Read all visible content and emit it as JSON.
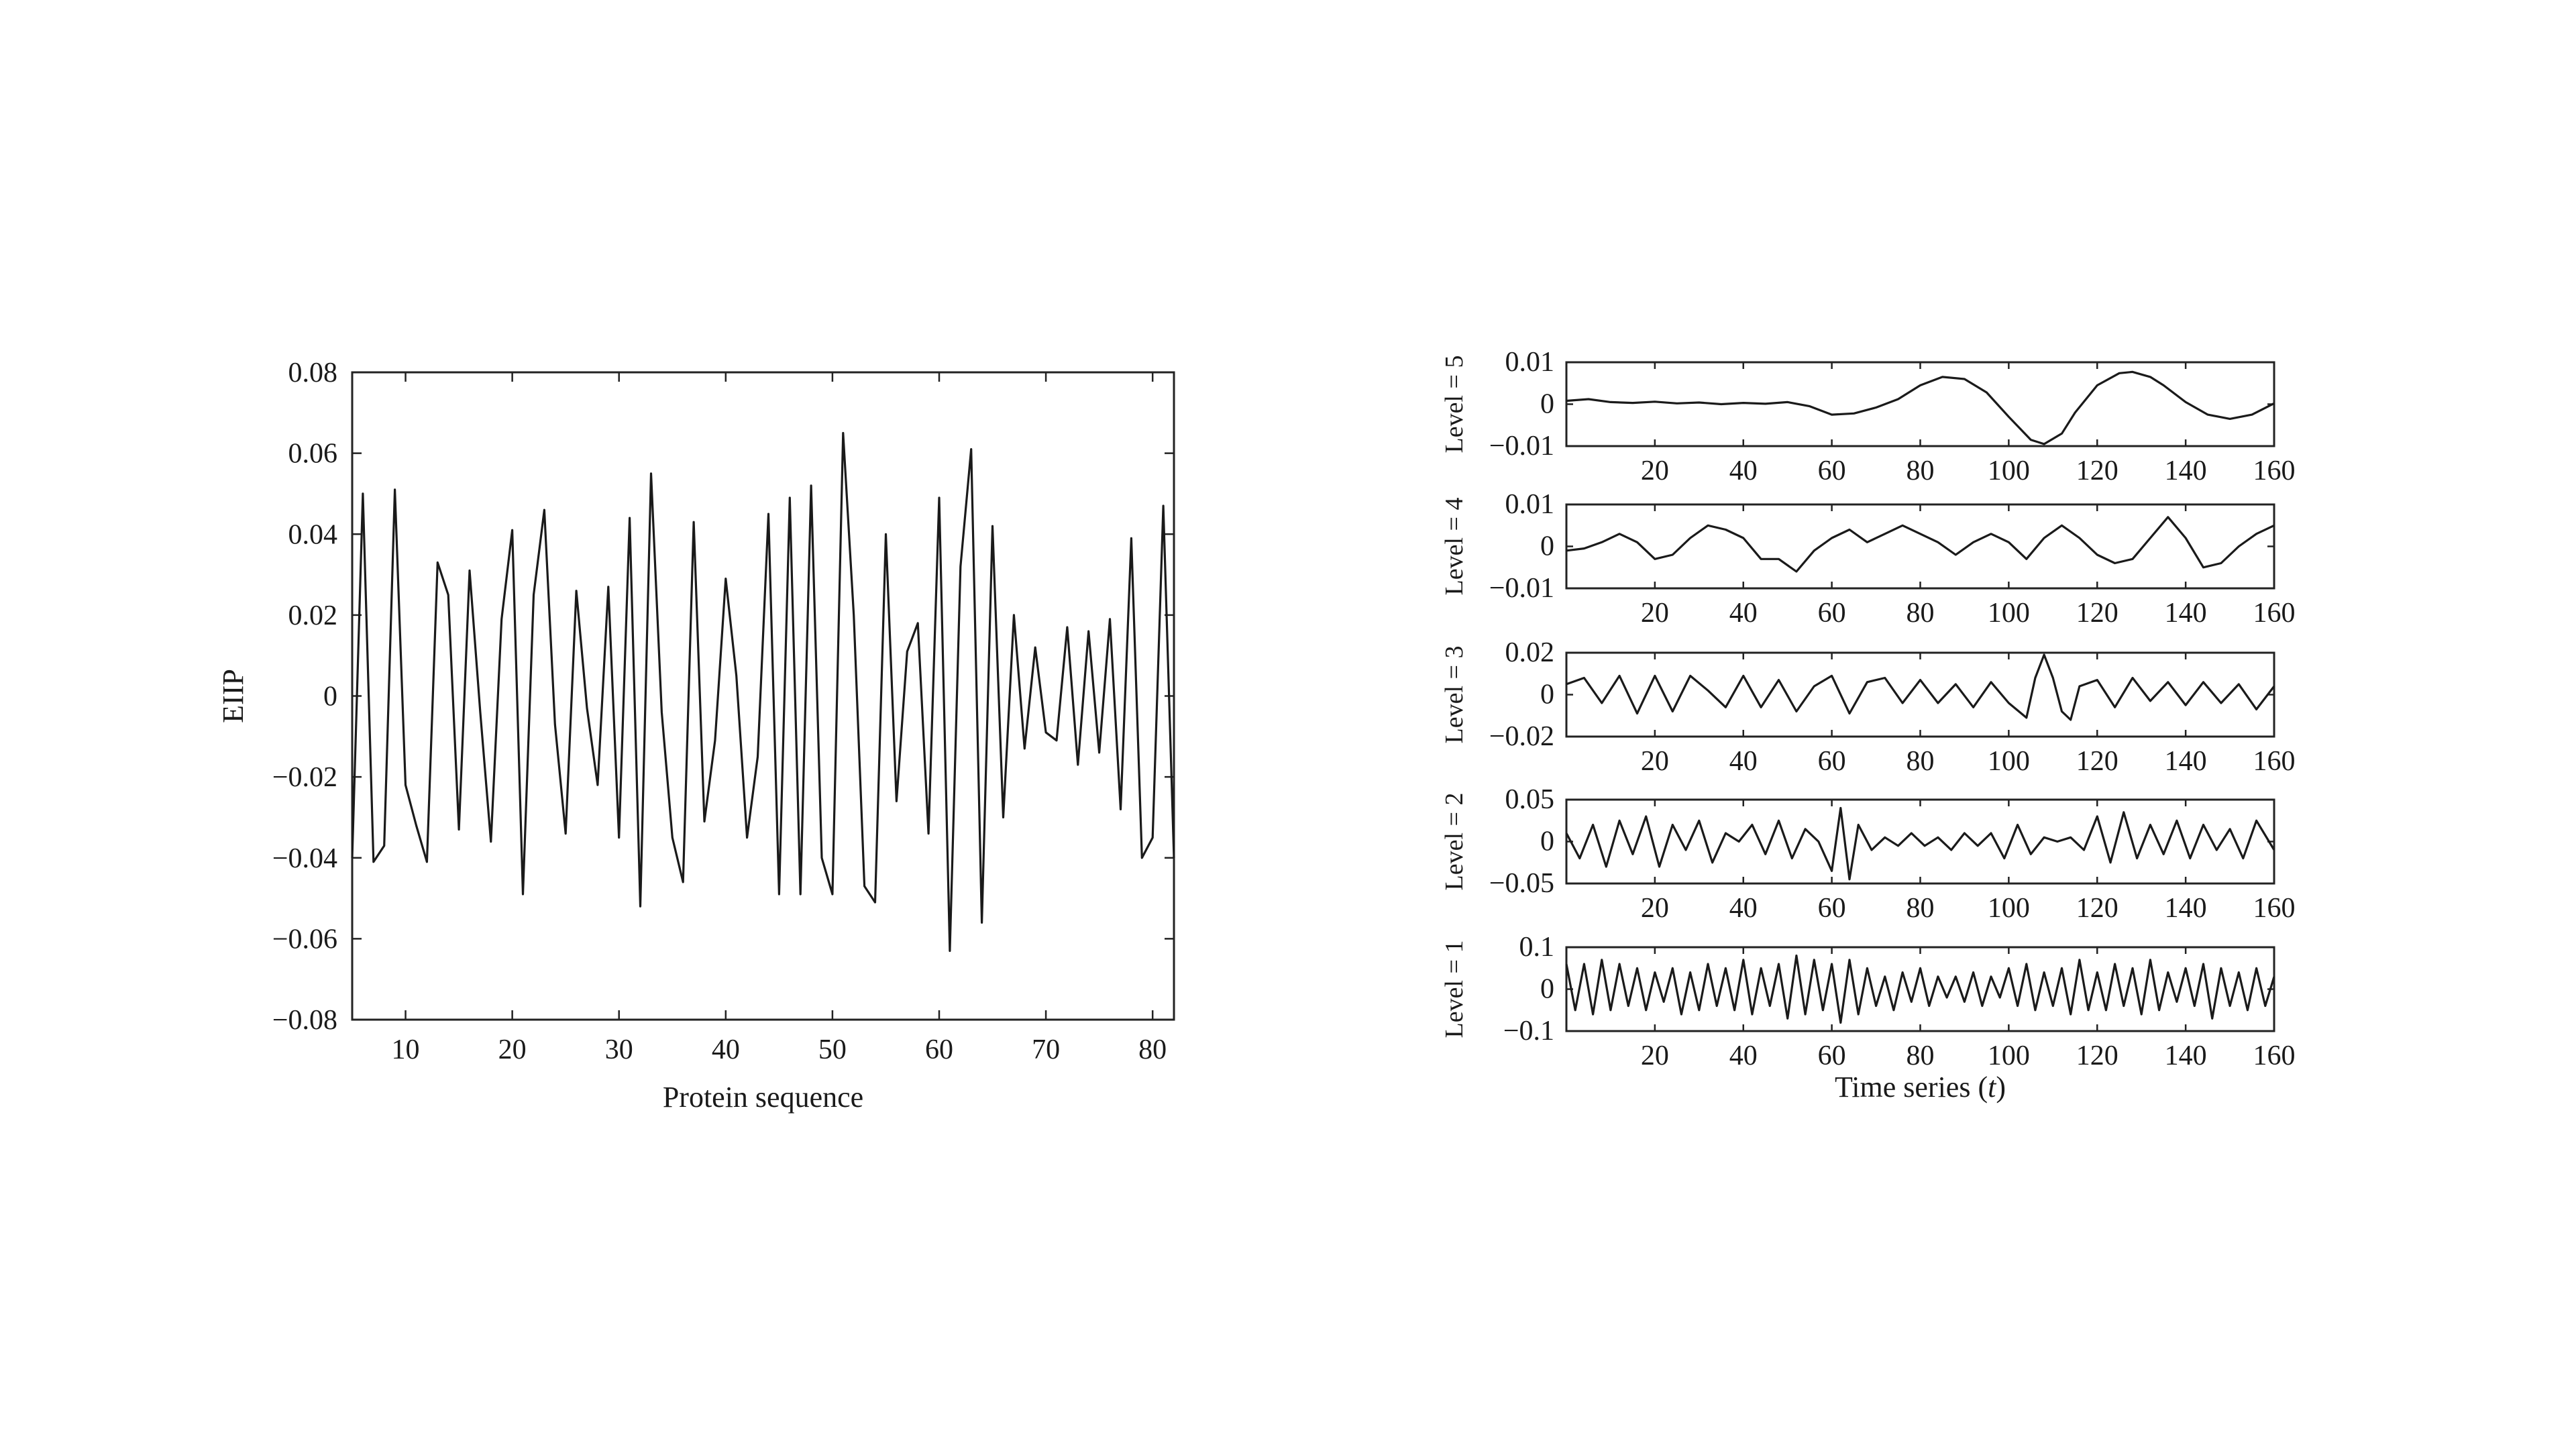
{
  "chart_data": [
    {
      "type": "line",
      "title": "",
      "xlabel": "Protein sequence",
      "ylabel": "EIIP",
      "xlim": [
        5,
        82
      ],
      "ylim": [
        -0.08,
        0.08
      ],
      "xticks": [
        10,
        20,
        30,
        40,
        50,
        60,
        70,
        80
      ],
      "xtick_labels": [
        "10",
        "20",
        "30",
        "40",
        "50",
        "60",
        "70",
        "80"
      ],
      "yticks": [
        -0.08,
        -0.06,
        -0.04,
        -0.02,
        0,
        0.02,
        0.04,
        0.06,
        0.08
      ],
      "ytick_labels": [
        "−0.08",
        "−0.06",
        "−0.04",
        "−0.02",
        "0",
        "0.02",
        "0.04",
        "0.06",
        "0.08"
      ],
      "grid": false,
      "series": [
        {
          "x": [
            5,
            6,
            7,
            8,
            9,
            10,
            11,
            12,
            13,
            14,
            15,
            16,
            17,
            18,
            19,
            20,
            21,
            22,
            23,
            24,
            25,
            26,
            27,
            28,
            29,
            30,
            31,
            32,
            33,
            34,
            35,
            36,
            37,
            38,
            39,
            40,
            41,
            42,
            43,
            44,
            45,
            46,
            47,
            48,
            49,
            50,
            51,
            52,
            53,
            54,
            55,
            56,
            57,
            58,
            59,
            60,
            61,
            62,
            63,
            64,
            65,
            66,
            67,
            68,
            69,
            70,
            71,
            72,
            73,
            74,
            75,
            76,
            77,
            78,
            79,
            80,
            81,
            82
          ],
          "y": [
            -0.04,
            0.05,
            -0.041,
            -0.037,
            0.051,
            -0.022,
            -0.032,
            -0.041,
            0.033,
            0.025,
            -0.033,
            0.031,
            -0.004,
            -0.036,
            0.019,
            0.041,
            -0.049,
            0.025,
            0.046,
            -0.007,
            -0.034,
            0.026,
            -0.003,
            -0.022,
            0.027,
            -0.035,
            0.044,
            -0.052,
            0.055,
            -0.004,
            -0.035,
            -0.046,
            0.043,
            -0.031,
            -0.011,
            0.029,
            0.005,
            -0.035,
            -0.015,
            0.045,
            -0.049,
            0.049,
            -0.049,
            0.052,
            -0.04,
            -0.049,
            0.065,
            0.02,
            -0.047,
            -0.051,
            0.04,
            -0.026,
            0.011,
            0.018,
            -0.034,
            0.049,
            -0.063,
            0.032,
            0.061,
            -0.056,
            0.042,
            -0.03,
            0.02,
            -0.013,
            0.012,
            -0.009,
            -0.011,
            0.017,
            -0.017,
            0.016,
            -0.014,
            0.019,
            -0.028,
            0.039,
            -0.04,
            -0.035,
            0.047,
            -0.04
          ]
        }
      ]
    },
    {
      "type": "line",
      "title": "",
      "xlabel": "Time series",
      "xlabel_italic": "t",
      "xlim": [
        0,
        160
      ],
      "xticks": [
        20,
        40,
        60,
        80,
        100,
        120,
        140,
        160
      ],
      "xtick_labels": [
        "20",
        "40",
        "60",
        "80",
        "100",
        "120",
        "140",
        "160"
      ],
      "grid": false,
      "panels": [
        {
          "ylabel": "Level = 5",
          "ylim": [
            -0.01,
            0.01
          ],
          "yticks": [
            -0.01,
            0,
            0.01
          ],
          "ytick_labels": [
            "−0.01",
            "0",
            "0.01"
          ],
          "x": [
            0,
            5,
            10,
            15,
            20,
            25,
            30,
            35,
            40,
            45,
            50,
            55,
            60,
            65,
            70,
            75,
            80,
            85,
            90,
            95,
            100,
            105,
            108,
            112,
            115,
            120,
            125,
            128,
            132,
            135,
            140,
            145,
            150,
            155,
            160
          ],
          "y": [
            0.0008,
            0.0012,
            0.0005,
            0.0003,
            0.0006,
            0.0002,
            0.0004,
            0.0,
            0.0003,
            0.0001,
            0.0005,
            -0.0005,
            -0.0025,
            -0.0022,
            -0.0008,
            0.0012,
            0.0045,
            0.0065,
            0.006,
            0.0028,
            -0.003,
            -0.0085,
            -0.0095,
            -0.007,
            -0.002,
            0.0045,
            0.0074,
            0.0077,
            0.0065,
            0.0045,
            0.0005,
            -0.0025,
            -0.0035,
            -0.0025,
            0.0002
          ]
        },
        {
          "ylabel": "Level = 4",
          "ylim": [
            -0.01,
            0.01
          ],
          "yticks": [
            -0.01,
            0,
            0.01
          ],
          "ytick_labels": [
            "−0.01",
            "0",
            "0.01"
          ],
          "x": [
            0,
            4,
            8,
            12,
            16,
            20,
            24,
            28,
            32,
            36,
            40,
            44,
            48,
            52,
            56,
            60,
            64,
            68,
            72,
            76,
            80,
            84,
            88,
            92,
            96,
            100,
            104,
            108,
            112,
            116,
            120,
            124,
            128,
            132,
            136,
            140,
            144,
            148,
            152,
            156,
            160
          ],
          "y": [
            -0.001,
            -0.0005,
            0.001,
            0.003,
            0.001,
            -0.003,
            -0.002,
            0.002,
            0.005,
            0.004,
            0.002,
            -0.003,
            -0.003,
            -0.006,
            -0.001,
            0.002,
            0.004,
            0.001,
            0.003,
            0.005,
            0.003,
            0.001,
            -0.002,
            0.001,
            0.003,
            0.001,
            -0.003,
            0.002,
            0.005,
            0.002,
            -0.002,
            -0.004,
            -0.003,
            0.002,
            0.007,
            0.002,
            -0.005,
            -0.004,
            0.0,
            0.003,
            0.005
          ]
        },
        {
          "ylabel": "Level = 3",
          "ylim": [
            -0.02,
            0.02
          ],
          "yticks": [
            -0.02,
            0,
            0.02
          ],
          "ytick_labels": [
            "−0.02",
            "0",
            "0.02"
          ],
          "x": [
            0,
            4,
            8,
            12,
            16,
            20,
            24,
            28,
            32,
            36,
            40,
            44,
            48,
            52,
            56,
            60,
            64,
            68,
            72,
            76,
            80,
            84,
            88,
            92,
            96,
            100,
            104,
            106,
            108,
            110,
            112,
            114,
            116,
            120,
            124,
            128,
            132,
            136,
            140,
            144,
            148,
            152,
            156,
            160
          ],
          "y": [
            0.005,
            0.008,
            -0.004,
            0.009,
            -0.009,
            0.009,
            -0.008,
            0.009,
            0.002,
            -0.006,
            0.009,
            -0.006,
            0.007,
            -0.008,
            0.004,
            0.009,
            -0.009,
            0.006,
            0.008,
            -0.004,
            0.007,
            -0.004,
            0.005,
            -0.006,
            0.006,
            -0.004,
            -0.011,
            0.008,
            0.019,
            0.008,
            -0.008,
            -0.012,
            0.004,
            0.007,
            -0.006,
            0.008,
            -0.003,
            0.006,
            -0.005,
            0.006,
            -0.004,
            0.005,
            -0.007,
            0.004
          ]
        },
        {
          "ylabel": "Level = 2",
          "ylim": [
            -0.05,
            0.05
          ],
          "yticks": [
            -0.05,
            0,
            0.05
          ],
          "ytick_labels": [
            "−0.05",
            "0",
            "0.05"
          ],
          "x": [
            0,
            3,
            6,
            9,
            12,
            15,
            18,
            21,
            24,
            27,
            30,
            33,
            36,
            39,
            42,
            45,
            48,
            51,
            54,
            57,
            60,
            62,
            64,
            66,
            69,
            72,
            75,
            78,
            81,
            84,
            87,
            90,
            93,
            96,
            99,
            102,
            105,
            108,
            111,
            114,
            117,
            120,
            123,
            126,
            129,
            132,
            135,
            138,
            141,
            144,
            147,
            150,
            153,
            156,
            160
          ],
          "y": [
            0.01,
            -0.02,
            0.02,
            -0.03,
            0.025,
            -0.015,
            0.03,
            -0.03,
            0.02,
            -0.01,
            0.025,
            -0.025,
            0.01,
            0.0,
            0.02,
            -0.015,
            0.025,
            -0.02,
            0.015,
            0.0,
            -0.035,
            0.04,
            -0.045,
            0.02,
            -0.01,
            0.005,
            -0.005,
            0.01,
            -0.005,
            0.005,
            -0.01,
            0.01,
            -0.005,
            0.01,
            -0.02,
            0.02,
            -0.015,
            0.005,
            0.0,
            0.005,
            -0.01,
            0.03,
            -0.025,
            0.035,
            -0.02,
            0.02,
            -0.015,
            0.025,
            -0.02,
            0.02,
            -0.01,
            0.015,
            -0.02,
            0.025,
            -0.01
          ]
        },
        {
          "ylabel": "Level = 1",
          "ylim": [
            -0.1,
            0.1
          ],
          "yticks": [
            -0.1,
            0,
            0.1
          ],
          "ytick_labels": [
            "−0.1",
            "0",
            "0.1"
          ],
          "x": [
            0,
            2,
            4,
            6,
            8,
            10,
            12,
            14,
            16,
            18,
            20,
            22,
            24,
            26,
            28,
            30,
            32,
            34,
            36,
            38,
            40,
            42,
            44,
            46,
            48,
            50,
            52,
            54,
            56,
            58,
            60,
            62,
            64,
            66,
            68,
            70,
            72,
            74,
            76,
            78,
            80,
            82,
            84,
            86,
            88,
            90,
            92,
            94,
            96,
            98,
            100,
            102,
            104,
            106,
            108,
            110,
            112,
            114,
            116,
            118,
            120,
            122,
            124,
            126,
            128,
            130,
            132,
            134,
            136,
            138,
            140,
            142,
            144,
            146,
            148,
            150,
            152,
            154,
            156,
            158,
            160
          ],
          "y": [
            0.06,
            -0.05,
            0.06,
            -0.06,
            0.07,
            -0.05,
            0.06,
            -0.04,
            0.05,
            -0.05,
            0.04,
            -0.03,
            0.05,
            -0.06,
            0.04,
            -0.05,
            0.06,
            -0.04,
            0.05,
            -0.05,
            0.07,
            -0.06,
            0.05,
            -0.04,
            0.06,
            -0.07,
            0.08,
            -0.06,
            0.07,
            -0.05,
            0.06,
            -0.08,
            0.07,
            -0.06,
            0.05,
            -0.04,
            0.03,
            -0.05,
            0.04,
            -0.03,
            0.05,
            -0.04,
            0.03,
            -0.02,
            0.03,
            -0.03,
            0.04,
            -0.04,
            0.03,
            -0.02,
            0.05,
            -0.04,
            0.06,
            -0.05,
            0.04,
            -0.04,
            0.05,
            -0.06,
            0.07,
            -0.05,
            0.04,
            -0.05,
            0.06,
            -0.04,
            0.05,
            -0.06,
            0.07,
            -0.05,
            0.04,
            -0.03,
            0.05,
            -0.04,
            0.06,
            -0.07,
            0.05,
            -0.04,
            0.04,
            -0.05,
            0.05,
            -0.04,
            0.03
          ]
        }
      ]
    }
  ]
}
